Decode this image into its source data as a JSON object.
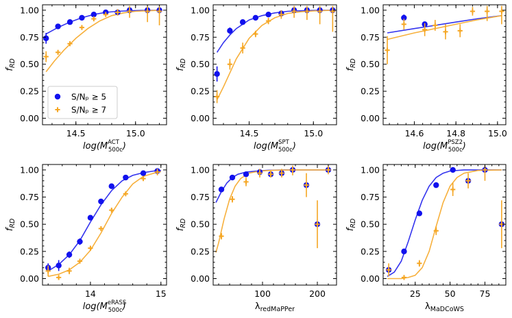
{
  "colors": {
    "series1": "#1111ee",
    "series2": "#f5a623",
    "fit1": "#3333ee",
    "fit2": "#f7b03c"
  },
  "legend": {
    "entries": [
      "S/Nₚ ≥ 5",
      "S/Nₚ ≥ 7"
    ],
    "panel": 0,
    "placement": "lower-right"
  },
  "chart_data": [
    {
      "type": "scatter",
      "ylabel_main": "f",
      "ylabel_sub": "RD",
      "xlabel_main": "log(M",
      "xlabel_sup": "ACT",
      "xlabel_sub": "500c",
      "xlabel_tail": ")",
      "xlim": [
        14.22,
        15.26
      ],
      "ylim": [
        -0.06,
        1.05
      ],
      "xticks": [
        14.5,
        15.0
      ],
      "xtick_labels": [
        "14.5",
        "15.0"
      ],
      "yticks": [
        0,
        0.25,
        0.5,
        0.75,
        1.0
      ],
      "ytick_labels": [
        "0.00",
        "0.25",
        "0.50",
        "0.75",
        "1.00"
      ],
      "series": [
        {
          "points": [
            [
              14.25,
              0.74,
              0.05
            ],
            [
              14.35,
              0.85,
              0.01
            ],
            [
              14.45,
              0.89,
              0.01
            ],
            [
              14.55,
              0.93,
              0.01
            ],
            [
              14.65,
              0.96,
              0.01
            ],
            [
              14.75,
              0.98,
              0.01
            ],
            [
              14.85,
              0.98,
              0.01
            ],
            [
              14.95,
              1.0,
              0.01
            ],
            [
              15.1,
              1.0,
              0.02
            ],
            [
              15.2,
              1.0,
              0.02
            ]
          ]
        },
        {
          "points": [
            [
              14.25,
              0.57,
              0.05
            ],
            [
              14.35,
              0.61,
              0.02
            ],
            [
              14.45,
              0.69,
              0.02
            ],
            [
              14.55,
              0.84,
              0.02
            ],
            [
              14.65,
              0.92,
              0.02
            ],
            [
              14.75,
              0.96,
              0.02
            ],
            [
              14.85,
              0.98,
              0.03
            ],
            [
              14.95,
              0.99,
              0.06
            ],
            [
              15.1,
              0.99,
              0.1
            ],
            [
              15.2,
              0.99,
              0.13
            ]
          ]
        }
      ],
      "fits": [
        {
          "x": [
            14.25,
            14.35,
            14.45,
            14.55,
            14.65,
            14.75,
            14.85,
            14.95,
            15.05,
            15.15,
            15.22
          ],
          "y": [
            0.78,
            0.84,
            0.89,
            0.93,
            0.96,
            0.98,
            0.99,
            0.995,
            0.998,
            0.999,
            1.0
          ]
        },
        {
          "x": [
            14.25,
            14.32,
            14.4,
            14.5,
            14.6,
            14.7,
            14.8,
            14.9,
            15.0,
            15.1,
            15.22
          ],
          "y": [
            0.43,
            0.53,
            0.63,
            0.74,
            0.83,
            0.9,
            0.95,
            0.975,
            0.99,
            0.995,
            1.0
          ]
        }
      ]
    },
    {
      "type": "scatter",
      "ylabel_main": "f",
      "ylabel_sub": "RD",
      "xlabel_main": "log(M",
      "xlabel_sup": "SPT",
      "xlabel_sub": "500c",
      "xlabel_tail": ")",
      "xlim": [
        14.22,
        15.18
      ],
      "ylim": [
        -0.06,
        1.05
      ],
      "xticks": [
        14.5,
        15.0
      ],
      "xtick_labels": [
        "14.5",
        "15.0"
      ],
      "yticks": [
        0,
        0.25,
        0.5,
        0.75,
        1.0
      ],
      "ytick_labels": [
        "0.00",
        "0.25",
        "0.50",
        "0.75",
        "1.00"
      ],
      "series": [
        {
          "points": [
            [
              14.25,
              0.41,
              0.07
            ],
            [
              14.35,
              0.81,
              0.03
            ],
            [
              14.45,
              0.89,
              0.02
            ],
            [
              14.55,
              0.93,
              0.01
            ],
            [
              14.65,
              0.96,
              0.01
            ],
            [
              14.75,
              0.97,
              0.01
            ],
            [
              14.85,
              1.0,
              0.01
            ],
            [
              14.95,
              1.0,
              0.02
            ],
            [
              15.05,
              1.0,
              0.03
            ],
            [
              15.15,
              1.0,
              0.02
            ]
          ]
        },
        {
          "points": [
            [
              14.25,
              0.2,
              0.06
            ],
            [
              14.35,
              0.5,
              0.05
            ],
            [
              14.45,
              0.65,
              0.05
            ],
            [
              14.55,
              0.78,
              0.03
            ],
            [
              14.65,
              0.9,
              0.03
            ],
            [
              14.75,
              0.96,
              0.04
            ],
            [
              14.85,
              0.99,
              0.06
            ],
            [
              14.95,
              0.99,
              0.08
            ],
            [
              15.05,
              0.99,
              0.12
            ],
            [
              15.15,
              0.99,
              0.19
            ]
          ]
        }
      ],
      "fits": [
        {
          "x": [
            14.25,
            14.3,
            14.35,
            14.4,
            14.5,
            14.6,
            14.7,
            14.8,
            14.9,
            15.0,
            15.15
          ],
          "y": [
            0.61,
            0.7,
            0.77,
            0.83,
            0.91,
            0.95,
            0.975,
            0.99,
            0.995,
            0.998,
            1.0
          ]
        },
        {
          "x": [
            14.25,
            14.3,
            14.35,
            14.4,
            14.5,
            14.6,
            14.7,
            14.8,
            14.9,
            15.0,
            15.15
          ],
          "y": [
            0.17,
            0.29,
            0.42,
            0.55,
            0.74,
            0.86,
            0.93,
            0.97,
            0.985,
            0.993,
            1.0
          ]
        }
      ]
    },
    {
      "type": "scatter",
      "ylabel_main": "f",
      "ylabel_sub": "RD",
      "xlabel_main": "log(M",
      "xlabel_sup": "PSZ2",
      "xlabel_sub": "500c",
      "xlabel_tail": ")",
      "xlim": [
        14.45,
        15.04
      ],
      "ylim": [
        -0.06,
        1.05
      ],
      "xticks": [
        14.6,
        14.8,
        15.0
      ],
      "xtick_labels": [
        "14.6",
        "14.8",
        "15.0"
      ],
      "yticks": [
        0,
        0.25,
        0.5,
        0.75,
        1.0
      ],
      "ytick_labels": [
        "0.00",
        "0.25",
        "0.50",
        "0.75",
        "1.00"
      ],
      "series": [
        {
          "points": [
            [
              14.55,
              0.93,
              0.03
            ],
            [
              14.65,
              0.87,
              0.02
            ]
          ]
        },
        {
          "points": [
            [
              14.47,
              0.63,
              0.13
            ],
            [
              14.55,
              0.87,
              0.05
            ],
            [
              14.65,
              0.82,
              0.06
            ],
            [
              14.7,
              0.86,
              0.05
            ],
            [
              14.75,
              0.8,
              0.07
            ],
            [
              14.82,
              0.81,
              0.06
            ],
            [
              14.88,
              0.99,
              0.04
            ],
            [
              14.95,
              0.99,
              0.09
            ],
            [
              15.02,
              0.99,
              0.12
            ]
          ]
        }
      ],
      "fits": [
        {
          "x": [
            14.47,
            14.6,
            14.7,
            14.8,
            14.9,
            15.02
          ],
          "y": [
            0.79,
            0.83,
            0.86,
            0.89,
            0.92,
            0.95
          ]
        },
        {
          "x": [
            14.47,
            14.6,
            14.7,
            14.8,
            14.9,
            15.02
          ],
          "y": [
            0.73,
            0.79,
            0.83,
            0.87,
            0.91,
            0.95
          ]
        }
      ]
    },
    {
      "type": "scatter",
      "ylabel_main": "f",
      "ylabel_sub": "RD",
      "xlabel_main": "log(M",
      "xlabel_sup": "eRASS",
      "xlabel_sub": "500c",
      "xlabel_tail": ")",
      "xlim": [
        13.32,
        15.08
      ],
      "ylim": [
        -0.06,
        1.05
      ],
      "xticks": [
        14,
        15
      ],
      "xtick_labels": [
        "14",
        "15"
      ],
      "yticks": [
        0,
        0.25,
        0.5,
        0.75,
        1.0
      ],
      "ytick_labels": [
        "0.00",
        "0.25",
        "0.50",
        "0.75",
        "1.00"
      ],
      "series": [
        {
          "points": [
            [
              13.4,
              0.1,
              0.04
            ],
            [
              13.55,
              0.12,
              0.05
            ],
            [
              13.7,
              0.22,
              0.03
            ],
            [
              13.85,
              0.34,
              0.03
            ],
            [
              14.0,
              0.56,
              0.02
            ],
            [
              14.15,
              0.71,
              0.02
            ],
            [
              14.3,
              0.85,
              0.02
            ],
            [
              14.5,
              0.93,
              0.01
            ],
            [
              14.75,
              0.97,
              0.01
            ],
            [
              14.95,
              0.99,
              0.01
            ]
          ]
        },
        {
          "points": [
            [
              13.4,
              0.07,
              0.05
            ],
            [
              13.55,
              0.01,
              0.02
            ],
            [
              13.7,
              0.07,
              0.03
            ],
            [
              13.85,
              0.16,
              0.02
            ],
            [
              14.0,
              0.28,
              0.02
            ],
            [
              14.15,
              0.46,
              0.02
            ],
            [
              14.3,
              0.63,
              0.02
            ],
            [
              14.5,
              0.78,
              0.02
            ],
            [
              14.75,
              0.92,
              0.02
            ],
            [
              14.95,
              0.98,
              0.03
            ]
          ]
        }
      ],
      "fits": [
        {
          "x": [
            13.4,
            13.55,
            13.7,
            13.85,
            14.0,
            14.15,
            14.3,
            14.45,
            14.6,
            14.75,
            14.9,
            15.0
          ],
          "y": [
            0.07,
            0.13,
            0.22,
            0.35,
            0.52,
            0.68,
            0.81,
            0.9,
            0.95,
            0.975,
            0.99,
            0.995
          ]
        },
        {
          "x": [
            13.4,
            13.55,
            13.7,
            13.85,
            14.0,
            14.15,
            14.3,
            14.45,
            14.6,
            14.75,
            14.9,
            15.0
          ],
          "y": [
            0.02,
            0.04,
            0.08,
            0.15,
            0.26,
            0.42,
            0.6,
            0.75,
            0.87,
            0.94,
            0.97,
            0.985
          ]
        }
      ]
    },
    {
      "type": "scatter",
      "ylabel_main": "f",
      "ylabel_sub": "RD",
      "xlabel_main": "λ",
      "xlabel_sup": "",
      "xlabel_sub": "redMaPPer",
      "xlabel_tail": "",
      "xlim": [
        10,
        235
      ],
      "ylim": [
        -0.06,
        1.05
      ],
      "xticks": [
        100,
        200
      ],
      "xtick_labels": [
        "100",
        "200"
      ],
      "yticks": [
        0,
        0.25,
        0.5,
        0.75,
        1.0
      ],
      "ytick_labels": [
        "0.00",
        "0.25",
        "0.50",
        "0.75",
        "1.00"
      ],
      "series": [
        {
          "points": [
            [
              25,
              0.82,
              0.01
            ],
            [
              45,
              0.93,
              0.01
            ],
            [
              70,
              0.96,
              0.01
            ],
            [
              95,
              0.98,
              0.01
            ],
            [
              115,
              0.96,
              0.01
            ],
            [
              135,
              0.97,
              0.01
            ],
            [
              155,
              1.0,
              0.01
            ],
            [
              180,
              0.86,
              0.01
            ],
            [
              200,
              0.5,
              0.01
            ],
            [
              220,
              1.0,
              0.01
            ]
          ]
        },
        {
          "points": [
            [
              25,
              0.39,
              0.03
            ],
            [
              45,
              0.73,
              0.03
            ],
            [
              70,
              0.89,
              0.04
            ],
            [
              95,
              0.97,
              0.04
            ],
            [
              115,
              0.96,
              0.03
            ],
            [
              135,
              0.97,
              0.04
            ],
            [
              155,
              1.0,
              0.05
            ],
            [
              180,
              0.86,
              0.11
            ],
            [
              200,
              0.5,
              0.22
            ],
            [
              220,
              1.0,
              0.04
            ]
          ]
        }
      ],
      "fits": [
        {
          "x": [
            15,
            25,
            35,
            45,
            55,
            70,
            90,
            110,
            140,
            180,
            225
          ],
          "y": [
            0.7,
            0.8,
            0.88,
            0.93,
            0.96,
            0.98,
            0.99,
            0.997,
            1.0,
            1.0,
            1.0
          ]
        },
        {
          "x": [
            15,
            20,
            25,
            30,
            40,
            50,
            60,
            75,
            95,
            120,
            160,
            225
          ],
          "y": [
            0.24,
            0.33,
            0.44,
            0.55,
            0.73,
            0.85,
            0.92,
            0.97,
            0.99,
            0.997,
            1.0,
            1.0
          ]
        }
      ]
    },
    {
      "type": "scatter",
      "ylabel_main": "f",
      "ylabel_sub": "RD",
      "xlabel_main": "λ",
      "xlabel_sup": "",
      "xlabel_sub": "MaDCoWS",
      "xlabel_tail": "",
      "xlim": [
        2,
        90
      ],
      "ylim": [
        -0.06,
        1.05
      ],
      "xticks": [
        25,
        50,
        75
      ],
      "xtick_labels": [
        "25",
        "50",
        "75"
      ],
      "yticks": [
        0,
        0.25,
        0.5,
        0.75,
        1.0
      ],
      "ytick_labels": [
        "0.00",
        "0.25",
        "0.50",
        "0.75",
        "1.00"
      ],
      "series": [
        {
          "points": [
            [
              6,
              0.08,
              0.01
            ],
            [
              17,
              0.25,
              0.01
            ],
            [
              28,
              0.6,
              0.01
            ],
            [
              40,
              0.86,
              0.01
            ],
            [
              52,
              1.0,
              0.01
            ],
            [
              63,
              0.9,
              0.01
            ],
            [
              75,
              1.0,
              0.01
            ],
            [
              87,
              0.5,
              0.01
            ]
          ]
        },
        {
          "points": [
            [
              6,
              0.08,
              0.06
            ],
            [
              17,
              0.01,
              0.02
            ],
            [
              28,
              0.14,
              0.03
            ],
            [
              40,
              0.44,
              0.04
            ],
            [
              52,
              0.82,
              0.06
            ],
            [
              63,
              0.9,
              0.07
            ],
            [
              75,
              1.0,
              0.1
            ],
            [
              87,
              0.5,
              0.22
            ]
          ]
        }
      ],
      "fits": [
        {
          "x": [
            5,
            10,
            15,
            20,
            25,
            30,
            35,
            40,
            45,
            50,
            60,
            70,
            87
          ],
          "y": [
            0.02,
            0.06,
            0.16,
            0.34,
            0.54,
            0.72,
            0.85,
            0.93,
            0.97,
            0.99,
            1.0,
            1.0,
            1.0
          ]
        },
        {
          "x": [
            5,
            15,
            20,
            25,
            30,
            35,
            40,
            45,
            50,
            55,
            60,
            70,
            87
          ],
          "y": [
            0.0,
            0.0,
            0.01,
            0.03,
            0.1,
            0.25,
            0.48,
            0.7,
            0.85,
            0.93,
            0.97,
            0.995,
            1.0
          ]
        }
      ]
    }
  ]
}
